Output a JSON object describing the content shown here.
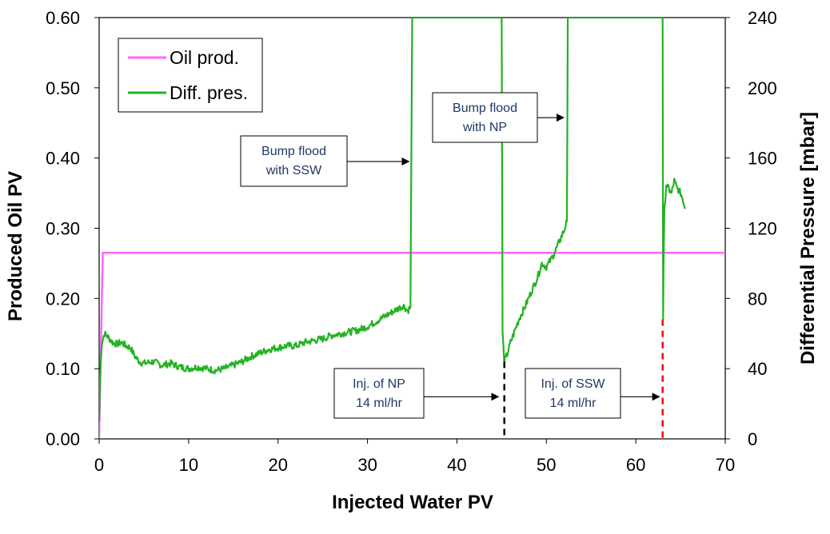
{
  "chart_data": {
    "type": "line",
    "title": "",
    "xlabel": "Injected Water PV",
    "ylabel_left": "Produced Oil PV",
    "ylabel_right": "Differential Pressure [mbar]",
    "xlim": [
      0,
      70
    ],
    "ylim_left": [
      0,
      0.6
    ],
    "ylim_right": [
      0,
      240
    ],
    "x_ticks": [
      "0",
      "10",
      "20",
      "30",
      "40",
      "50",
      "60",
      "70"
    ],
    "y_left_ticks": [
      "0.00",
      "0.10",
      "0.20",
      "0.30",
      "0.40",
      "0.50",
      "0.60"
    ],
    "y_right_ticks": [
      "0",
      "40",
      "80",
      "120",
      "160",
      "200",
      "240"
    ],
    "grid": false,
    "legend_position": "top-left",
    "series": [
      {
        "name": "Oil prod.",
        "axis": "left",
        "color": "#ff66ff",
        "x": [
          0,
          0.4,
          70
        ],
        "y": [
          0,
          0.265,
          0.265
        ]
      },
      {
        "name": "Diff. pres.",
        "axis": "right",
        "color": "#22b222",
        "x": [
          0,
          0.1,
          0.3,
          0.6,
          1.0,
          1.5,
          2.0,
          2.5,
          3.0,
          3.5,
          4.0,
          4.5,
          5.0,
          6.0,
          7.0,
          8.0,
          9.0,
          10.0,
          11.0,
          12.0,
          13.0,
          14.0,
          15.0,
          16.0,
          17.0,
          18.0,
          19.0,
          20.0,
          21.0,
          22.0,
          23.0,
          24.0,
          25.0,
          26.0,
          27.0,
          28.0,
          29.0,
          30.0,
          31.0,
          32.0,
          33.0,
          34.0,
          34.5,
          34.8,
          35.0,
          35.1,
          35.2,
          45.0,
          45.1,
          45.3,
          45.6,
          46.0,
          46.5,
          47.0,
          47.5,
          48.0,
          48.5,
          49.0,
          49.5,
          50.0,
          50.5,
          51.0,
          51.5,
          52.0,
          52.3,
          52.4,
          52.5,
          63.0,
          63.05,
          63.1,
          63.2,
          63.4,
          63.7,
          64.0,
          64.3,
          64.6,
          65.0,
          65.3,
          65.5
        ],
        "y": [
          10,
          35,
          55,
          60,
          58,
          55,
          54,
          55,
          53,
          52,
          47,
          44,
          43,
          44,
          42,
          43,
          41,
          40,
          41,
          40,
          39,
          40,
          42,
          44,
          47,
          49,
          51,
          52,
          53,
          53,
          55,
          56,
          57,
          59,
          60,
          61,
          62,
          64,
          67,
          70,
          73,
          76,
          73,
          75,
          240,
          240,
          240,
          240,
          60,
          44,
          48,
          55,
          62,
          69,
          74,
          80,
          86,
          92,
          100,
          98,
          102,
          107,
          113,
          119,
          124,
          240,
          240,
          240,
          68,
          100,
          130,
          145,
          142,
          140,
          147,
          143,
          140,
          136,
          131
        ]
      }
    ],
    "annotations": [
      {
        "id": "bump-ssw",
        "lines": [
          "Bump flood",
          "with SSW"
        ],
        "arrow_to": [
          35.0,
          158
        ]
      },
      {
        "id": "bump-np",
        "lines": [
          "Bump flood",
          "with NP"
        ],
        "arrow_to": [
          52.3,
          183
        ]
      },
      {
        "id": "inj-np",
        "lines": [
          "Inj. of NP",
          "14 ml/hr"
        ],
        "arrow_to": [
          45.0,
          24
        ],
        "vline_x": 45.3,
        "vline_color": "#000000"
      },
      {
        "id": "inj-ssw",
        "lines": [
          "Inj. of SSW",
          "14 ml/hr"
        ],
        "arrow_to": [
          63.0,
          24
        ],
        "vline_x": 63.0,
        "vline_color": "#ff0000"
      }
    ]
  }
}
